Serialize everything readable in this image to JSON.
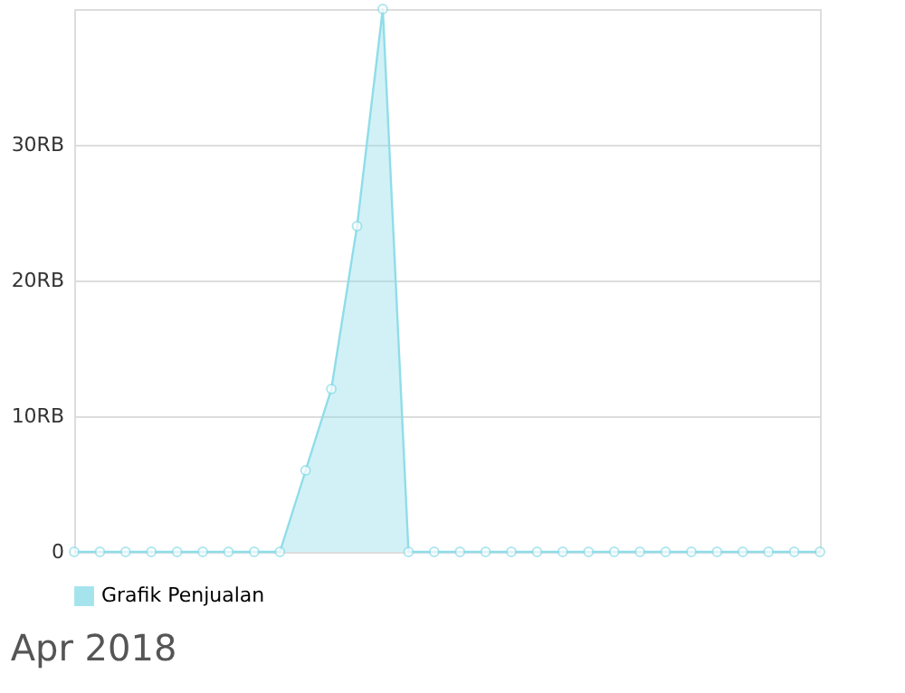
{
  "chart_data": {
    "type": "area",
    "categories": [
      null,
      null,
      null,
      null,
      null,
      null,
      null,
      null,
      null,
      null,
      null,
      null,
      null,
      null,
      null,
      null,
      null,
      null,
      null,
      null,
      null,
      null,
      null,
      null,
      null,
      null,
      null,
      null,
      null,
      null
    ],
    "series": [
      {
        "name": "Grafik Penjualan",
        "color": "#8fdde9",
        "values": [
          0,
          0,
          0,
          0,
          0,
          0,
          0,
          0,
          0,
          6,
          12,
          24,
          40,
          0,
          0,
          0,
          0,
          0,
          0,
          0,
          0,
          0,
          0,
          0,
          0,
          0,
          0,
          0,
          0,
          0
        ]
      }
    ],
    "ylim": [
      0,
      40
    ],
    "yticks": [
      0,
      {
        "value": 10,
        "label": "10RB"
      },
      {
        "value": 20,
        "label": "20RB"
      },
      {
        "value": 30,
        "label": "30RB"
      }
    ],
    "grid": "y",
    "legend": "bottom left",
    "marker": "circle",
    "tick_labels": "y",
    "annotations": [
      "Apr 2018"
    ]
  }
}
